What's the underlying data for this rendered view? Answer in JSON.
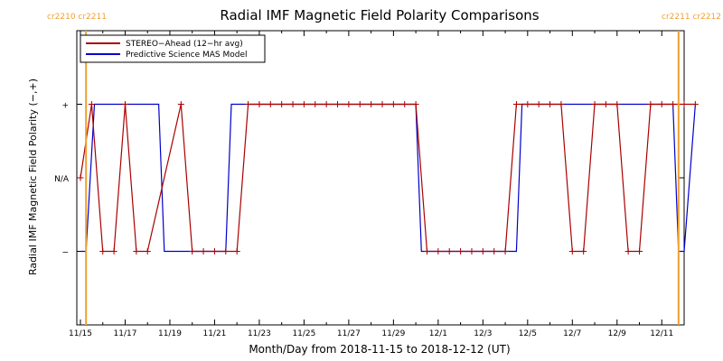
{
  "chart_data": {
    "type": "line",
    "title": "Radial IMF Magnetic Field Polarity Comparisons",
    "xlabel": "Month/Day from 2018-11-15 to 2018-12-12 (UT)",
    "ylabel": "Radial IMF Magnetic Field Polarity (−,+)",
    "xlim": [
      "2018-11-15",
      "2018-12-12"
    ],
    "x_ticks": [
      "11/15",
      "11/17",
      "11/19",
      "11/21",
      "11/23",
      "11/25",
      "11/27",
      "11/29",
      "12/1",
      "12/3",
      "12/5",
      "12/7",
      "12/9",
      "12/11"
    ],
    "y_categories": [
      "−",
      "N/A",
      "+"
    ],
    "y_ticks": [
      {
        "value": -1,
        "label": "−"
      },
      {
        "value": 0,
        "label": "N/A"
      },
      {
        "value": 1,
        "label": "+"
      }
    ],
    "ylim": [
      -2,
      2
    ],
    "carrington_markers": [
      {
        "date": "2018-11-15 06:00",
        "label": "cr2210 cr2211",
        "align": "left"
      },
      {
        "date": "2018-12-11 18:00",
        "label": "cr2211 cr2212",
        "align": "right"
      }
    ],
    "legend": {
      "placement": "top-left"
    },
    "series": [
      {
        "name": "STEREO−Ahead (12−hr avg)",
        "color": "#aa0000",
        "marker": "plus",
        "points": [
          [
            "2018-11-15 00:00",
            0
          ],
          [
            "2018-11-15 12:00",
            1
          ],
          [
            "2018-11-16 00:00",
            -1
          ],
          [
            "2018-11-16 12:00",
            -1
          ],
          [
            "2018-11-17 00:00",
            1
          ],
          [
            "2018-11-17 12:00",
            -1
          ],
          [
            "2018-11-18 00:00",
            -1
          ],
          [
            "2018-11-19 12:00",
            1
          ],
          [
            "2018-11-20 00:00",
            -1
          ],
          [
            "2018-11-20 12:00",
            -1
          ],
          [
            "2018-11-21 00:00",
            -1
          ],
          [
            "2018-11-21 12:00",
            -1
          ],
          [
            "2018-11-22 00:00",
            -1
          ],
          [
            "2018-11-22 12:00",
            1
          ],
          [
            "2018-11-23 00:00",
            1
          ],
          [
            "2018-11-23 12:00",
            1
          ],
          [
            "2018-11-24 00:00",
            1
          ],
          [
            "2018-11-24 12:00",
            1
          ],
          [
            "2018-11-25 00:00",
            1
          ],
          [
            "2018-11-25 12:00",
            1
          ],
          [
            "2018-11-26 00:00",
            1
          ],
          [
            "2018-11-26 12:00",
            1
          ],
          [
            "2018-11-27 00:00",
            1
          ],
          [
            "2018-11-27 12:00",
            1
          ],
          [
            "2018-11-28 00:00",
            1
          ],
          [
            "2018-11-28 12:00",
            1
          ],
          [
            "2018-11-29 00:00",
            1
          ],
          [
            "2018-11-29 12:00",
            1
          ],
          [
            "2018-11-30 00:00",
            1
          ],
          [
            "2018-11-30 12:00",
            -1
          ],
          [
            "2018-12-01 00:00",
            -1
          ],
          [
            "2018-12-01 12:00",
            -1
          ],
          [
            "2018-12-02 00:00",
            -1
          ],
          [
            "2018-12-02 12:00",
            -1
          ],
          [
            "2018-12-03 00:00",
            -1
          ],
          [
            "2018-12-03 12:00",
            -1
          ],
          [
            "2018-12-04 00:00",
            -1
          ],
          [
            "2018-12-04 12:00",
            1
          ],
          [
            "2018-12-05 00:00",
            1
          ],
          [
            "2018-12-05 12:00",
            1
          ],
          [
            "2018-12-06 00:00",
            1
          ],
          [
            "2018-12-06 12:00",
            1
          ],
          [
            "2018-12-07 00:00",
            -1
          ],
          [
            "2018-12-07 12:00",
            -1
          ],
          [
            "2018-12-08 00:00",
            1
          ],
          [
            "2018-12-08 12:00",
            1
          ],
          [
            "2018-12-09 00:00",
            1
          ],
          [
            "2018-12-09 12:00",
            -1
          ],
          [
            "2018-12-10 00:00",
            -1
          ],
          [
            "2018-12-10 12:00",
            1
          ],
          [
            "2018-12-11 00:00",
            1
          ],
          [
            "2018-12-11 12:00",
            1
          ],
          [
            "2018-12-12 00:00",
            1
          ],
          [
            "2018-12-12 12:00",
            1
          ]
        ]
      },
      {
        "name": "Predictive Science MAS Model",
        "color": "#0000cc",
        "marker": "none",
        "points": [
          [
            "2018-11-15 00:00",
            -1
          ],
          [
            "2018-11-15 06:00",
            -1
          ],
          [
            "2018-11-15 15:00",
            1
          ],
          [
            "2018-11-18 12:00",
            1
          ],
          [
            "2018-11-18 18:00",
            -1
          ],
          [
            "2018-11-21 12:00",
            -1
          ],
          [
            "2018-11-21 18:00",
            1
          ],
          [
            "2018-11-30 00:00",
            1
          ],
          [
            "2018-11-30 06:00",
            -1
          ],
          [
            "2018-12-04 12:00",
            -1
          ],
          [
            "2018-12-04 18:00",
            1
          ],
          [
            "2018-12-11 12:00",
            1
          ],
          [
            "2018-12-11 18:00",
            -1
          ],
          [
            "2018-12-12 00:00",
            -1
          ],
          [
            "2018-12-12 12:00",
            1
          ]
        ]
      }
    ]
  }
}
